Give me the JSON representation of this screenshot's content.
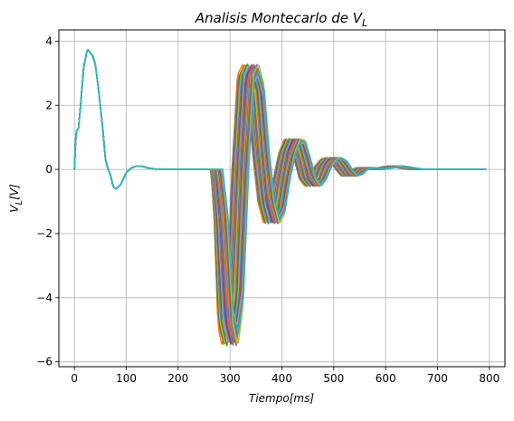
{
  "chart_data": {
    "type": "line",
    "title": "Analisis Montecarlo de V",
    "title_subscript": "L",
    "xlabel": "Tiempo[ms]",
    "ylabel": "V_L[V]",
    "xlim": [
      -30,
      830
    ],
    "ylim": [
      -6.15,
      4.35
    ],
    "xticks": [
      0,
      100,
      200,
      300,
      400,
      500,
      600,
      700,
      800
    ],
    "yticks": [
      -6,
      -4,
      -2,
      0,
      2,
      4
    ],
    "xtick_labels": [
      "0",
      "100",
      "200",
      "300",
      "400",
      "500",
      "600",
      "700",
      "800"
    ],
    "ytick_labels": [
      "−6",
      "−4",
      "−2",
      "0",
      "2",
      "4"
    ],
    "grid": true,
    "legend": "none",
    "colors": [
      "#1f77b4",
      "#ff7f0e",
      "#2ca02c",
      "#d62728",
      "#9467bd",
      "#8c564b",
      "#e377c2",
      "#7f7f7f",
      "#bcbd22",
      "#17becf"
    ],
    "x": [
      0,
      3,
      5,
      8,
      12,
      18,
      25,
      30,
      35,
      40,
      45,
      50,
      55,
      60,
      65,
      70,
      75,
      80,
      85,
      90,
      100,
      110,
      120,
      130,
      140,
      160,
      180,
      200,
      220,
      240,
      260,
      270,
      280,
      290,
      300,
      310,
      320,
      330,
      340,
      350,
      355,
      360,
      370,
      380,
      390,
      400,
      410,
      420,
      430,
      440,
      450,
      460,
      470,
      480,
      490,
      500,
      510,
      520,
      530,
      540,
      550,
      560,
      570,
      580,
      600,
      620,
      640,
      660,
      680,
      700,
      720,
      740,
      760,
      780,
      800
    ],
    "series": [
      {
        "values": [
          0,
          1.2,
          1.2,
          1.3,
          2.0,
          3.2,
          3.75,
          3.65,
          3.55,
          3.3,
          2.7,
          2.0,
          1.2,
          0.3,
          0.0,
          -0.2,
          -0.55,
          -0.6,
          -0.55,
          -0.45,
          -0.1,
          0.05,
          0.1,
          0.1,
          0.05,
          0.0,
          0.0,
          0.0,
          0.0,
          0.0,
          0.0,
          0.0,
          -1.5,
          -4.5,
          -5.2,
          -4.0,
          0.0,
          2.8,
          3.1,
          2.5,
          1.5,
          0.5,
          -1.0,
          -1.6,
          -1.3,
          -0.3,
          0.5,
          0.9,
          0.85,
          0.3,
          -0.3,
          -0.5,
          -0.3,
          0.1,
          0.3,
          0.35,
          0.25,
          0.0,
          -0.2,
          -0.15,
          0.0,
          0.05,
          0.05,
          0.0,
          0.05,
          0.1,
          0.05,
          0.0,
          0.0,
          0.0,
          0.0,
          0.0,
          0.0,
          0.0,
          0.0
        ]
      }
    ]
  }
}
